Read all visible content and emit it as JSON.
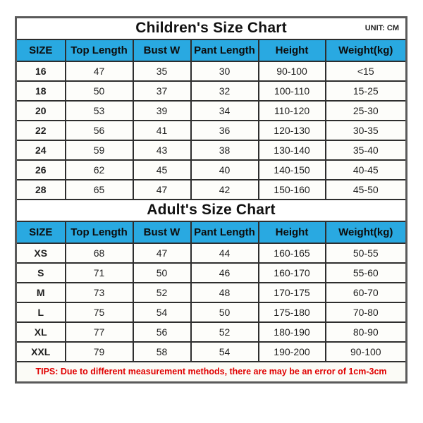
{
  "unit_label": "UNIT: CM",
  "tips": "TIPS: Due to different measurement methods, there are may be an error of 1cm-3cm",
  "colors": {
    "header_bg": "#29a9e1",
    "grid_border": "#2e2e2e",
    "outer_border": "#5a5a5a",
    "tips_text": "#e00000",
    "text": "#1f1f1f"
  },
  "chart_data": [
    {
      "type": "table",
      "title": "Children's Size Chart",
      "unit": "CM",
      "columns": [
        "SIZE",
        "Top Length",
        "Bust W",
        "Pant Length",
        "Height",
        "Weight(kg)"
      ],
      "rows": [
        [
          "16",
          "47",
          "35",
          "30",
          "90-100",
          "<15"
        ],
        [
          "18",
          "50",
          "37",
          "32",
          "100-110",
          "15-25"
        ],
        [
          "20",
          "53",
          "39",
          "34",
          "110-120",
          "25-30"
        ],
        [
          "22",
          "56",
          "41",
          "36",
          "120-130",
          "30-35"
        ],
        [
          "24",
          "59",
          "43",
          "38",
          "130-140",
          "35-40"
        ],
        [
          "26",
          "62",
          "45",
          "40",
          "140-150",
          "40-45"
        ],
        [
          "28",
          "65",
          "47",
          "42",
          "150-160",
          "45-50"
        ]
      ]
    },
    {
      "type": "table",
      "title": "Adult's Size Chart",
      "unit": "CM",
      "columns": [
        "SIZE",
        "Top Length",
        "Bust W",
        "Pant Length",
        "Height",
        "Weight(kg)"
      ],
      "rows": [
        [
          "XS",
          "68",
          "47",
          "44",
          "160-165",
          "50-55"
        ],
        [
          "S",
          "71",
          "50",
          "46",
          "160-170",
          "55-60"
        ],
        [
          "M",
          "73",
          "52",
          "48",
          "170-175",
          "60-70"
        ],
        [
          "L",
          "75",
          "54",
          "50",
          "175-180",
          "70-80"
        ],
        [
          "XL",
          "77",
          "56",
          "52",
          "180-190",
          "80-90"
        ],
        [
          "XXL",
          "79",
          "58",
          "54",
          "190-200",
          "90-100"
        ]
      ]
    }
  ]
}
